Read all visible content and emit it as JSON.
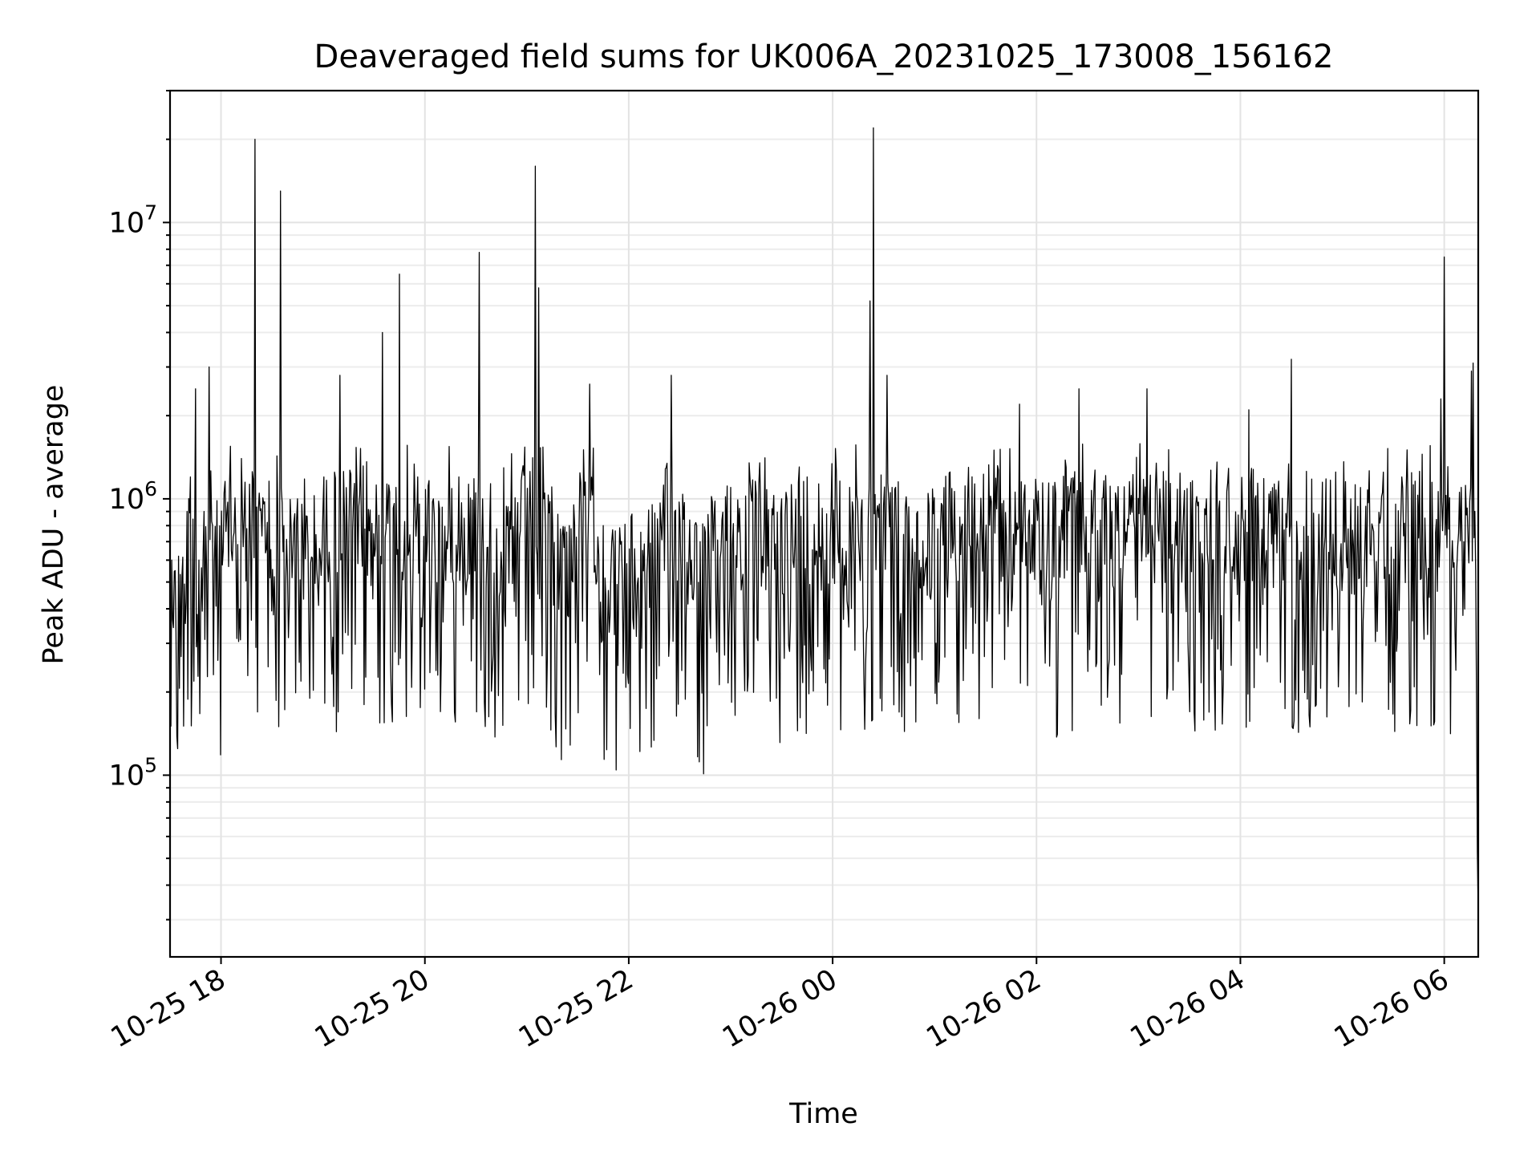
{
  "chart_data": {
    "type": "line",
    "title": "Deaveraged field sums for UK006A_20231025_173008_156162",
    "xlabel": "Time",
    "ylabel": "Peak ADU - average",
    "yscale": "log",
    "grid": true,
    "line_color": "#000000",
    "x_range": [
      "2023-10-25 17:30",
      "2023-10-26 06:20"
    ],
    "ylim": [
      22000,
      30000000
    ],
    "x_ticks": [
      {
        "value": "2023-10-25 18:00",
        "label": "10-25 18"
      },
      {
        "value": "2023-10-25 20:00",
        "label": "10-25 20"
      },
      {
        "value": "2023-10-25 22:00",
        "label": "10-25 22"
      },
      {
        "value": "2023-10-26 00:00",
        "label": "10-26 00"
      },
      {
        "value": "2023-10-26 02:00",
        "label": "10-26 02"
      },
      {
        "value": "2023-10-26 04:00",
        "label": "10-26 04"
      },
      {
        "value": "2023-10-26 06:00",
        "label": "10-26 06"
      }
    ],
    "y_ticks": [
      {
        "value": 100000,
        "base": "10",
        "exp": "5"
      },
      {
        "value": 1000000,
        "base": "10",
        "exp": "6"
      },
      {
        "value": 10000000,
        "base": "10",
        "exp": "7"
      }
    ],
    "series": [
      {
        "x": [
          "2023-10-25 17:30",
          "2023-10-25 17:31",
          "2023-10-25 17:33",
          "2023-10-25 17:35",
          "2023-10-25 17:37",
          "2023-10-25 17:40",
          "2023-10-25 17:42",
          "2023-10-25 17:45",
          "2023-10-25 17:47",
          "2023-10-25 17:50",
          "2023-10-25 17:53",
          "2023-10-25 17:55",
          "2023-10-25 18:05",
          "2023-10-25 18:12",
          "2023-10-25 18:20",
          "2023-10-25 18:22",
          "2023-10-25 18:35",
          "2023-10-25 18:37",
          "2023-10-25 18:45",
          "2023-10-25 19:00",
          "2023-10-25 19:10",
          "2023-10-25 19:18",
          "2023-10-25 19:35",
          "2023-10-25 19:43",
          "2023-10-25 19:45",
          "2023-10-25 20:05",
          "2023-10-25 20:20",
          "2023-10-25 20:32",
          "2023-10-25 20:34",
          "2023-10-25 20:50",
          "2023-10-25 21:05",
          "2023-10-25 21:07",
          "2023-10-25 21:10",
          "2023-10-25 21:25",
          "2023-10-25 21:37",
          "2023-10-25 21:45",
          "2023-10-25 21:50",
          "2023-10-25 22:20",
          "2023-10-25 22:25",
          "2023-10-25 22:40",
          "2023-10-25 22:42",
          "2023-10-25 23:00",
          "2023-10-25 23:30",
          "2023-10-25 23:45",
          "2023-10-26 00:10",
          "2023-10-26 00:22",
          "2023-10-26 00:24",
          "2023-10-26 00:26",
          "2023-10-26 00:32",
          "2023-10-26 00:33",
          "2023-10-26 00:35",
          "2023-10-26 00:50",
          "2023-10-26 01:20",
          "2023-10-26 01:35",
          "2023-10-26 01:50",
          "2023-10-26 02:00",
          "2023-10-26 02:20",
          "2023-10-26 02:25",
          "2023-10-26 02:47",
          "2023-10-26 03:05",
          "2023-10-26 03:10",
          "2023-10-26 03:40",
          "2023-10-26 04:05",
          "2023-10-26 04:22",
          "2023-10-26 04:30",
          "2023-10-26 05:05",
          "2023-10-26 05:35",
          "2023-10-26 05:58",
          "2023-10-26 06:00",
          "2023-10-26 06:10",
          "2023-10-26 06:16",
          "2023-10-26 06:17",
          "2023-10-26 06:18",
          "2023-10-26 06:19",
          "2023-10-26 06:20"
        ],
        "y": [
          450000,
          600000,
          550000,
          620000,
          520000,
          900000,
          1200000,
          2500000,
          600000,
          900000,
          3000000,
          800000,
          1100000,
          1400000,
          20000000,
          900000,
          13000000,
          800000,
          1000000,
          900000,
          2800000,
          1000000,
          4000000,
          1100000,
          6500000,
          1000000,
          1200000,
          7800000,
          1000000,
          900000,
          16000000,
          5800000,
          1000000,
          800000,
          2600000,
          800000,
          700000,
          900000,
          2800000,
          800000,
          700000,
          1100000,
          1000000,
          1200000,
          1100000,
          5200000,
          22000000,
          900000,
          2800000,
          1000000,
          1100000,
          900000,
          1300000,
          1500000,
          2200000,
          1000000,
          1100000,
          2500000,
          1000000,
          2500000,
          1100000,
          1000000,
          2100000,
          1000000,
          3200000,
          1000000,
          1200000,
          2300000,
          7500000,
          1100000,
          2900000,
          3100000,
          900000,
          180000,
          32000
        ]
      }
    ]
  }
}
